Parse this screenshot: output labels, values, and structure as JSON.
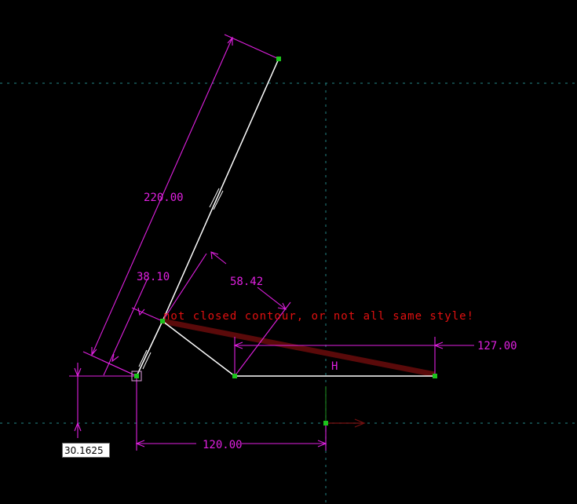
{
  "dimensions": {
    "long_edge": "220.00",
    "thickness": "38.10",
    "cut_width": "58.42",
    "base_length": "127.00",
    "horizontal_offset": "120.00"
  },
  "constraint_label": "H",
  "error_message": "not closed contour, or not all same style!",
  "input": {
    "value": "30.1625"
  },
  "colors": {
    "background": "#000000",
    "geometry": "#ffffff",
    "dimension": "#e020e0",
    "error": "#e01010",
    "error_highlight": "#5a0a0a",
    "point": "#1cc41c",
    "axis": "#1e6e6e",
    "axis_arrow": "#7a1010"
  }
}
